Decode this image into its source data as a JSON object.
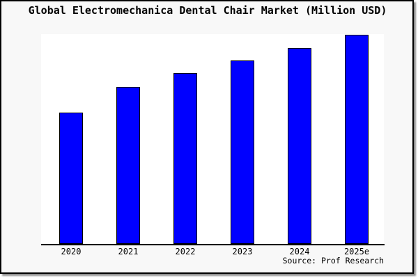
{
  "title": "Global Electromechanica Dental Chair Market (Million USD)",
  "source": "Source: Prof Research",
  "colors": {
    "bar_fill": "#0000ff",
    "bar_border": "#000000",
    "plot_bg": "#ffffff",
    "figure_bg": "#f8f8f8",
    "frame_border": "#000000",
    "text": "#000000"
  },
  "chart_data": {
    "type": "bar",
    "title": "Global Electromechanica Dental Chair Market (Million USD)",
    "categories": [
      "2020",
      "2021",
      "2022",
      "2023",
      "2024",
      "2025e"
    ],
    "values": [
      62.8,
      75.1,
      81.6,
      87.7,
      93.7,
      100
    ],
    "value_note": "relative index estimated from bar heights (2025e = 100); no y-axis scale, ticks or gridlines are shown in the figure",
    "xlabel": "",
    "ylabel": "",
    "ylim_relative": [
      0,
      100
    ],
    "y_axis_visible": false,
    "gridlines": false,
    "legend": false,
    "bar_color": "#0000ff",
    "annotation": "Source: Prof Research"
  }
}
